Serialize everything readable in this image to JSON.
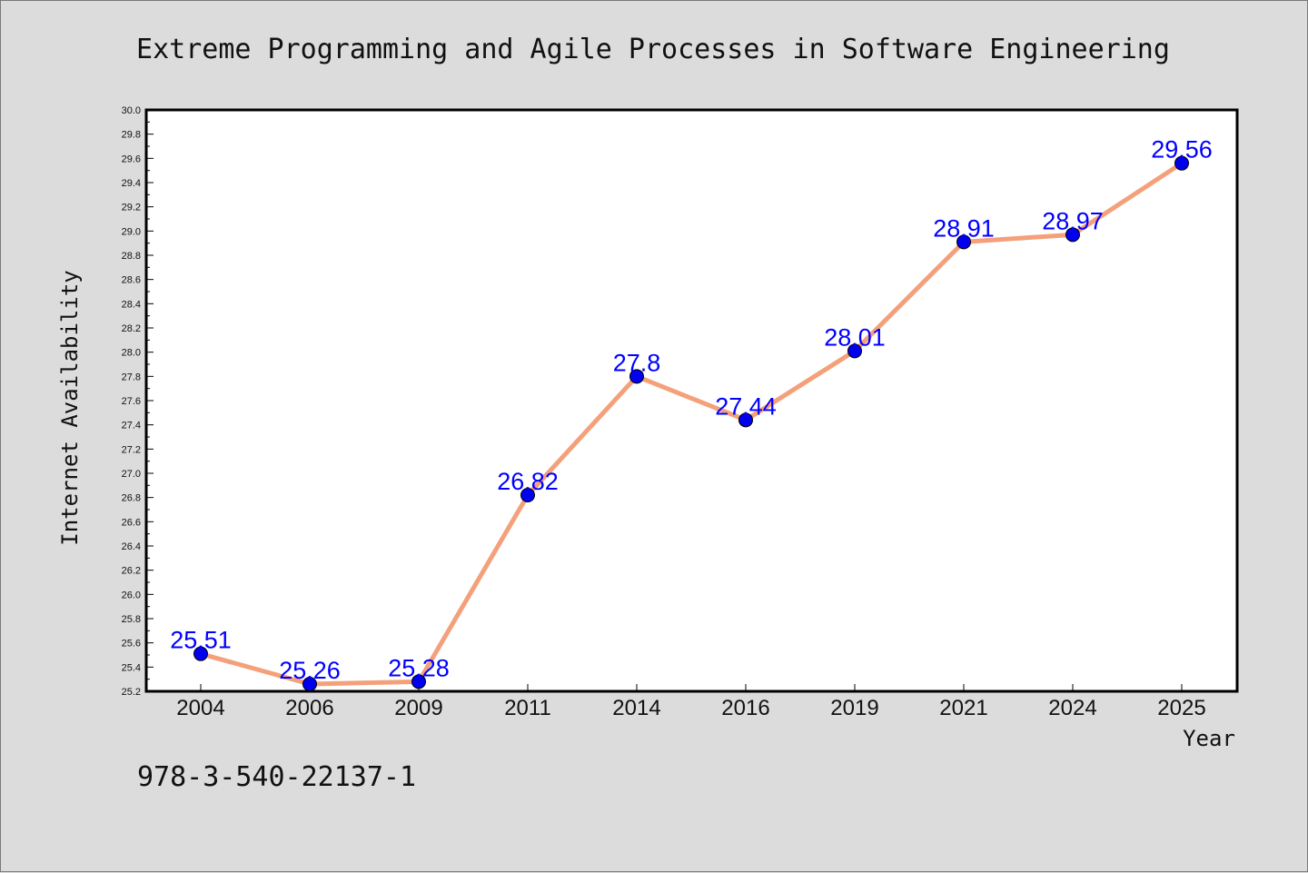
{
  "chart_data": {
    "type": "line",
    "title": "Extreme Programming and Agile Processes in Software Engineering",
    "xlabel": "Year",
    "ylabel": "Internet Availability",
    "categories": [
      "2004",
      "2006",
      "2009",
      "2011",
      "2014",
      "2016",
      "2019",
      "2021",
      "2024",
      "2025"
    ],
    "series": [
      {
        "values": [
          25.51,
          25.26,
          25.28,
          26.82,
          27.8,
          27.44,
          28.01,
          28.91,
          28.97,
          29.56
        ],
        "labels": [
          "25.51",
          "25.26",
          "25.28",
          "26.82",
          "27.8",
          "27.44",
          "28.01",
          "28.91",
          "28.97",
          "29.56"
        ]
      }
    ],
    "ylim": [
      25.2,
      30.0
    ],
    "yticks": [
      "25.2",
      "25.4",
      "25.6",
      "25.8",
      "26.0",
      "26.2",
      "26.4",
      "26.6",
      "26.8",
      "27.0",
      "27.2",
      "27.4",
      "27.6",
      "27.8",
      "28.0",
      "28.2",
      "28.4",
      "28.6",
      "28.8",
      "29.0",
      "29.2",
      "29.4",
      "29.6",
      "29.8",
      "30.0"
    ],
    "grid": false,
    "colors": {
      "line": "#f4a07a",
      "marker": "#0000ee",
      "label": "#0000ff",
      "background": "#dcdcdc",
      "plot_background": "#ffffff"
    }
  },
  "footer": {
    "isbn": "978-3-540-22137-1"
  }
}
